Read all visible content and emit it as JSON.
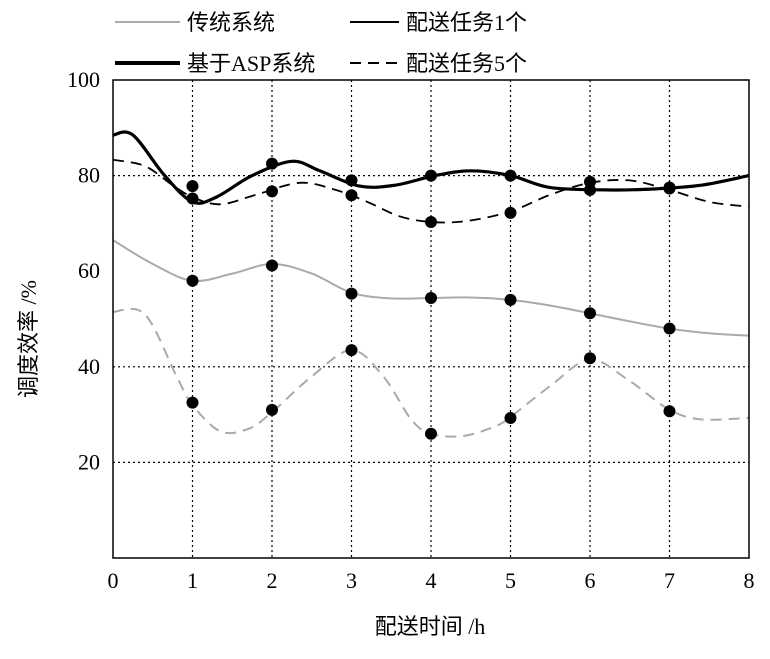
{
  "chart_data": {
    "type": "line",
    "title": "",
    "xlabel": "配送时间 /h",
    "ylabel": "调度效率 /%",
    "xlim": [
      0,
      8
    ],
    "ylim": [
      0,
      100
    ],
    "x_ticks": [
      0,
      1,
      2,
      3,
      4,
      5,
      6,
      7,
      8
    ],
    "y_ticks": [
      20,
      40,
      60,
      80,
      100
    ],
    "grid": "dotted, x at 1-7, y at 20/40/80",
    "legend_position": "top, outside plot, two columns",
    "legend": {
      "traditional": "传统系统",
      "asp": "基于ASP系统",
      "task1": "配送任务1个",
      "task5": "配送任务5个"
    },
    "series": [
      {
        "system": "asp",
        "tasks": "task1",
        "color": "#000000",
        "curve": [
          [
            0,
            88.5
          ],
          [
            0.25,
            88.5
          ],
          [
            0.65,
            80
          ],
          [
            1.0,
            74.5
          ],
          [
            1.3,
            75.5
          ],
          [
            1.75,
            80
          ],
          [
            2.25,
            83
          ],
          [
            2.6,
            81
          ],
          [
            3.1,
            77.8
          ],
          [
            3.55,
            78
          ],
          [
            4.05,
            80
          ],
          [
            4.5,
            81
          ],
          [
            5.0,
            80
          ],
          [
            5.5,
            77.5
          ],
          [
            6.2,
            77
          ],
          [
            6.8,
            77.2
          ],
          [
            7.4,
            78
          ],
          [
            8,
            80
          ]
        ],
        "markers": [
          [
            1,
            75.2
          ],
          [
            2,
            82.5
          ],
          [
            3,
            79
          ],
          [
            4,
            80
          ],
          [
            5,
            80
          ],
          [
            6,
            77
          ],
          [
            7,
            77.5
          ]
        ]
      },
      {
        "system": "asp",
        "tasks": "task5",
        "color": "#000000",
        "curve": [
          [
            0,
            83.3
          ],
          [
            0.4,
            82
          ],
          [
            0.75,
            78
          ],
          [
            1.0,
            75.5
          ],
          [
            1.35,
            74
          ],
          [
            1.8,
            76
          ],
          [
            2.35,
            78.5
          ],
          [
            2.8,
            77
          ],
          [
            3.2,
            74.5
          ],
          [
            3.6,
            71.5
          ],
          [
            4.0,
            70.3
          ],
          [
            4.45,
            70.5
          ],
          [
            5.0,
            72.5
          ],
          [
            5.5,
            76
          ],
          [
            6.0,
            78.5
          ],
          [
            6.5,
            79
          ],
          [
            7.0,
            77
          ],
          [
            7.5,
            74.5
          ],
          [
            8,
            73.5
          ]
        ],
        "markers": [
          [
            1,
            77.8
          ],
          [
            2,
            76.7
          ],
          [
            3,
            75.9
          ],
          [
            4,
            70.3
          ],
          [
            5,
            72.2
          ],
          [
            6,
            78.7
          ],
          [
            7,
            77.3
          ]
        ]
      },
      {
        "system": "traditional",
        "tasks": "task1",
        "color": "#aaaaaa",
        "curve": [
          [
            0,
            66.5
          ],
          [
            0.5,
            61.5
          ],
          [
            1.0,
            58
          ],
          [
            1.5,
            59.5
          ],
          [
            2.0,
            61.5
          ],
          [
            2.5,
            59.5
          ],
          [
            3.0,
            55.5
          ],
          [
            3.5,
            54.3
          ],
          [
            4.0,
            54.4
          ],
          [
            4.5,
            54.5
          ],
          [
            5.0,
            54
          ],
          [
            5.5,
            52.8
          ],
          [
            6.0,
            51.2
          ],
          [
            6.5,
            49.5
          ],
          [
            7.0,
            48
          ],
          [
            7.5,
            47
          ],
          [
            8,
            46.5
          ]
        ],
        "markers": [
          [
            1,
            58
          ],
          [
            2,
            61.2
          ],
          [
            3,
            55.3
          ],
          [
            4,
            54.4
          ],
          [
            5,
            54
          ],
          [
            6,
            51.2
          ],
          [
            7,
            48
          ]
        ]
      },
      {
        "system": "traditional",
        "tasks": "task5",
        "color": "#aaaaaa",
        "curve": [
          [
            0,
            51.5
          ],
          [
            0.4,
            51
          ],
          [
            0.8,
            38
          ],
          [
            1.0,
            32
          ],
          [
            1.35,
            26.5
          ],
          [
            1.7,
            27
          ],
          [
            2.0,
            30.5
          ],
          [
            2.5,
            38
          ],
          [
            3.0,
            43.5
          ],
          [
            3.4,
            38
          ],
          [
            3.75,
            29
          ],
          [
            4.0,
            26
          ],
          [
            4.4,
            25.5
          ],
          [
            4.8,
            27.5
          ],
          [
            5.0,
            29.5
          ],
          [
            5.5,
            36
          ],
          [
            6.0,
            41.5
          ],
          [
            6.5,
            37
          ],
          [
            7.0,
            31
          ],
          [
            7.4,
            29
          ],
          [
            8,
            29.3
          ]
        ],
        "markers": [
          [
            1,
            32.5
          ],
          [
            2,
            31
          ],
          [
            3,
            43.5
          ],
          [
            4,
            26
          ],
          [
            5,
            29.3
          ],
          [
            6,
            41.8
          ],
          [
            7,
            30.7
          ]
        ]
      }
    ]
  }
}
